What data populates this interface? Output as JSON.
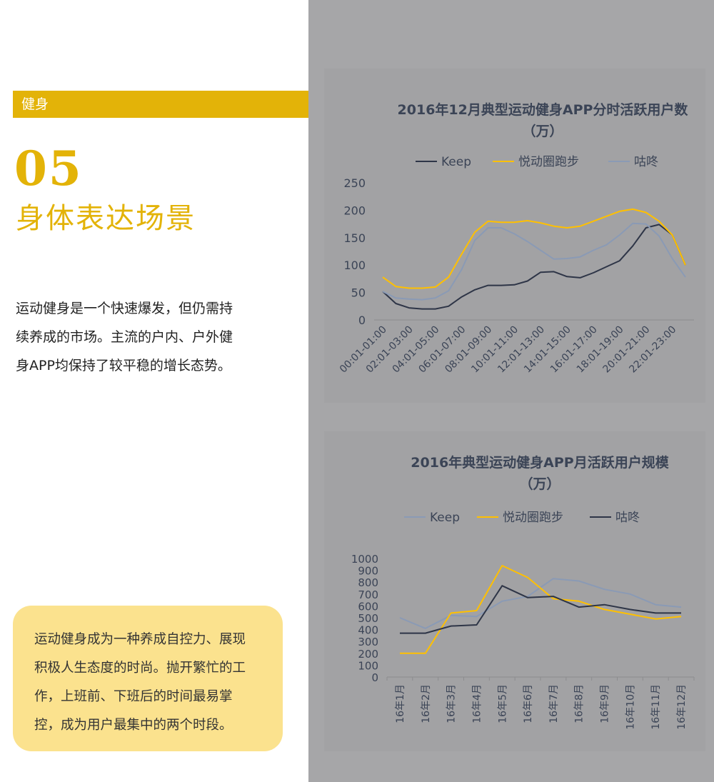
{
  "section": {
    "tag": "健身",
    "number": "05",
    "title": "身体表达场景"
  },
  "intro": {
    "lines": [
      "运动健身是一个快速爆发，但仍需持",
      "续养成的市场。主流的户内、户外健",
      "身APP均保持了较平稳的增长态势。"
    ]
  },
  "callout": {
    "lines": [
      "运动健身成为一种养成自控力、展现",
      "积极人生态度的时尚。抛开繁忙的工",
      "作，上班前、下班后的时间最易掌",
      "控，成为用户最集中的两个时段。"
    ]
  },
  "colors": {
    "accent": "#e3b308",
    "callout_bg": "#fbe28e",
    "panel_bg": "#a2a2a4"
  },
  "chart_data": [
    {
      "type": "line",
      "title": "2016年12月典型运动健身APP分时活跃用户数（万）",
      "title_lines": [
        "2016年12月典型运动健身APP分时活跃用户数",
        "（万）"
      ],
      "legend_position": "top",
      "ylim": [
        0,
        250
      ],
      "yticks": [
        0,
        50,
        100,
        150,
        200,
        250
      ],
      "x": [
        "00:01-01:00",
        "01:01-02:00",
        "02:01-03:00",
        "03:01-04:00",
        "04:01-05:00",
        "05:01-06:00",
        "06:01-07:00",
        "07:01-08:00",
        "08:01-09:00",
        "09:01-10:00",
        "10:01-11:00",
        "11:01-12:00",
        "12:01-13:00",
        "13:01-14:00",
        "14:01-15:00",
        "15:01-16:00",
        "16:01-17:00",
        "17:01-18:00",
        "18:01-19:00",
        "19:01-20:00",
        "20:01-21:00",
        "21:01-22:00",
        "22:01-23:00",
        "23:01-24:00"
      ],
      "x_tick_labels": [
        "00:01-01:00",
        "",
        "02:01-03:00",
        "",
        "04:01-05:00",
        "",
        "06:01-07:00",
        "",
        "08:01-09:00",
        "",
        "10:01-11:00",
        "",
        "12:01-13:00",
        "",
        "14:01-15:00",
        "",
        "16:01-17:00",
        "",
        "18:01-19:00",
        "",
        "20:01-21:00",
        "",
        "22:01-23:00",
        ""
      ],
      "series": [
        {
          "name": "Keep",
          "color": "#2e3547",
          "values": [
            52,
            30,
            22,
            20,
            20,
            25,
            42,
            55,
            63,
            63,
            64,
            71,
            87,
            88,
            79,
            77,
            86,
            97,
            108,
            135,
            168,
            174,
            155,
            100
          ]
        },
        {
          "name": "悦动圈跑步",
          "color": "#ffc000",
          "values": [
            78,
            61,
            58,
            58,
            60,
            78,
            120,
            160,
            180,
            178,
            178,
            181,
            177,
            171,
            168,
            171,
            180,
            189,
            198,
            202,
            196,
            180,
            155,
            100
          ]
        },
        {
          "name": "咕咚",
          "color": "#8a9ab5",
          "values": [
            52,
            40,
            38,
            37,
            40,
            53,
            92,
            145,
            168,
            168,
            157,
            143,
            127,
            111,
            112,
            115,
            127,
            137,
            155,
            176,
            175,
            153,
            112,
            78
          ]
        }
      ]
    },
    {
      "type": "line",
      "title": "2016年典型运动健身APP月活跃用户规模（万）",
      "title_lines": [
        "2016年典型运动健身APP月活跃用户规模",
        "（万）"
      ],
      "legend_position": "top",
      "ylim": [
        0,
        1000
      ],
      "yticks": [
        0,
        100,
        200,
        300,
        400,
        500,
        600,
        700,
        800,
        900,
        1000
      ],
      "x": [
        "16年1月",
        "16年2月",
        "16年3月",
        "16年4月",
        "16年5月",
        "16年6月",
        "16年7月",
        "16年8月",
        "16年9月",
        "16年10月",
        "16年11月",
        "16年12月"
      ],
      "x_tick_labels": [
        "16年1月",
        "16年2月",
        "16年3月",
        "16年4月",
        "16年5月",
        "16年6月",
        "16年7月",
        "16年8月",
        "16年9月",
        "16年10月",
        "16年11月",
        "16年12月"
      ],
      "series": [
        {
          "name": "Keep",
          "color": "#8a9ab5",
          "values": [
            500,
            410,
            520,
            510,
            640,
            680,
            830,
            810,
            740,
            700,
            610,
            590
          ]
        },
        {
          "name": "悦动圈跑步",
          "color": "#ffc000",
          "values": [
            200,
            200,
            540,
            560,
            940,
            840,
            660,
            640,
            570,
            530,
            490,
            510
          ]
        },
        {
          "name": "咕咚",
          "color": "#2e3547",
          "values": [
            370,
            370,
            430,
            440,
            770,
            670,
            680,
            590,
            610,
            570,
            540,
            540
          ]
        }
      ]
    }
  ]
}
